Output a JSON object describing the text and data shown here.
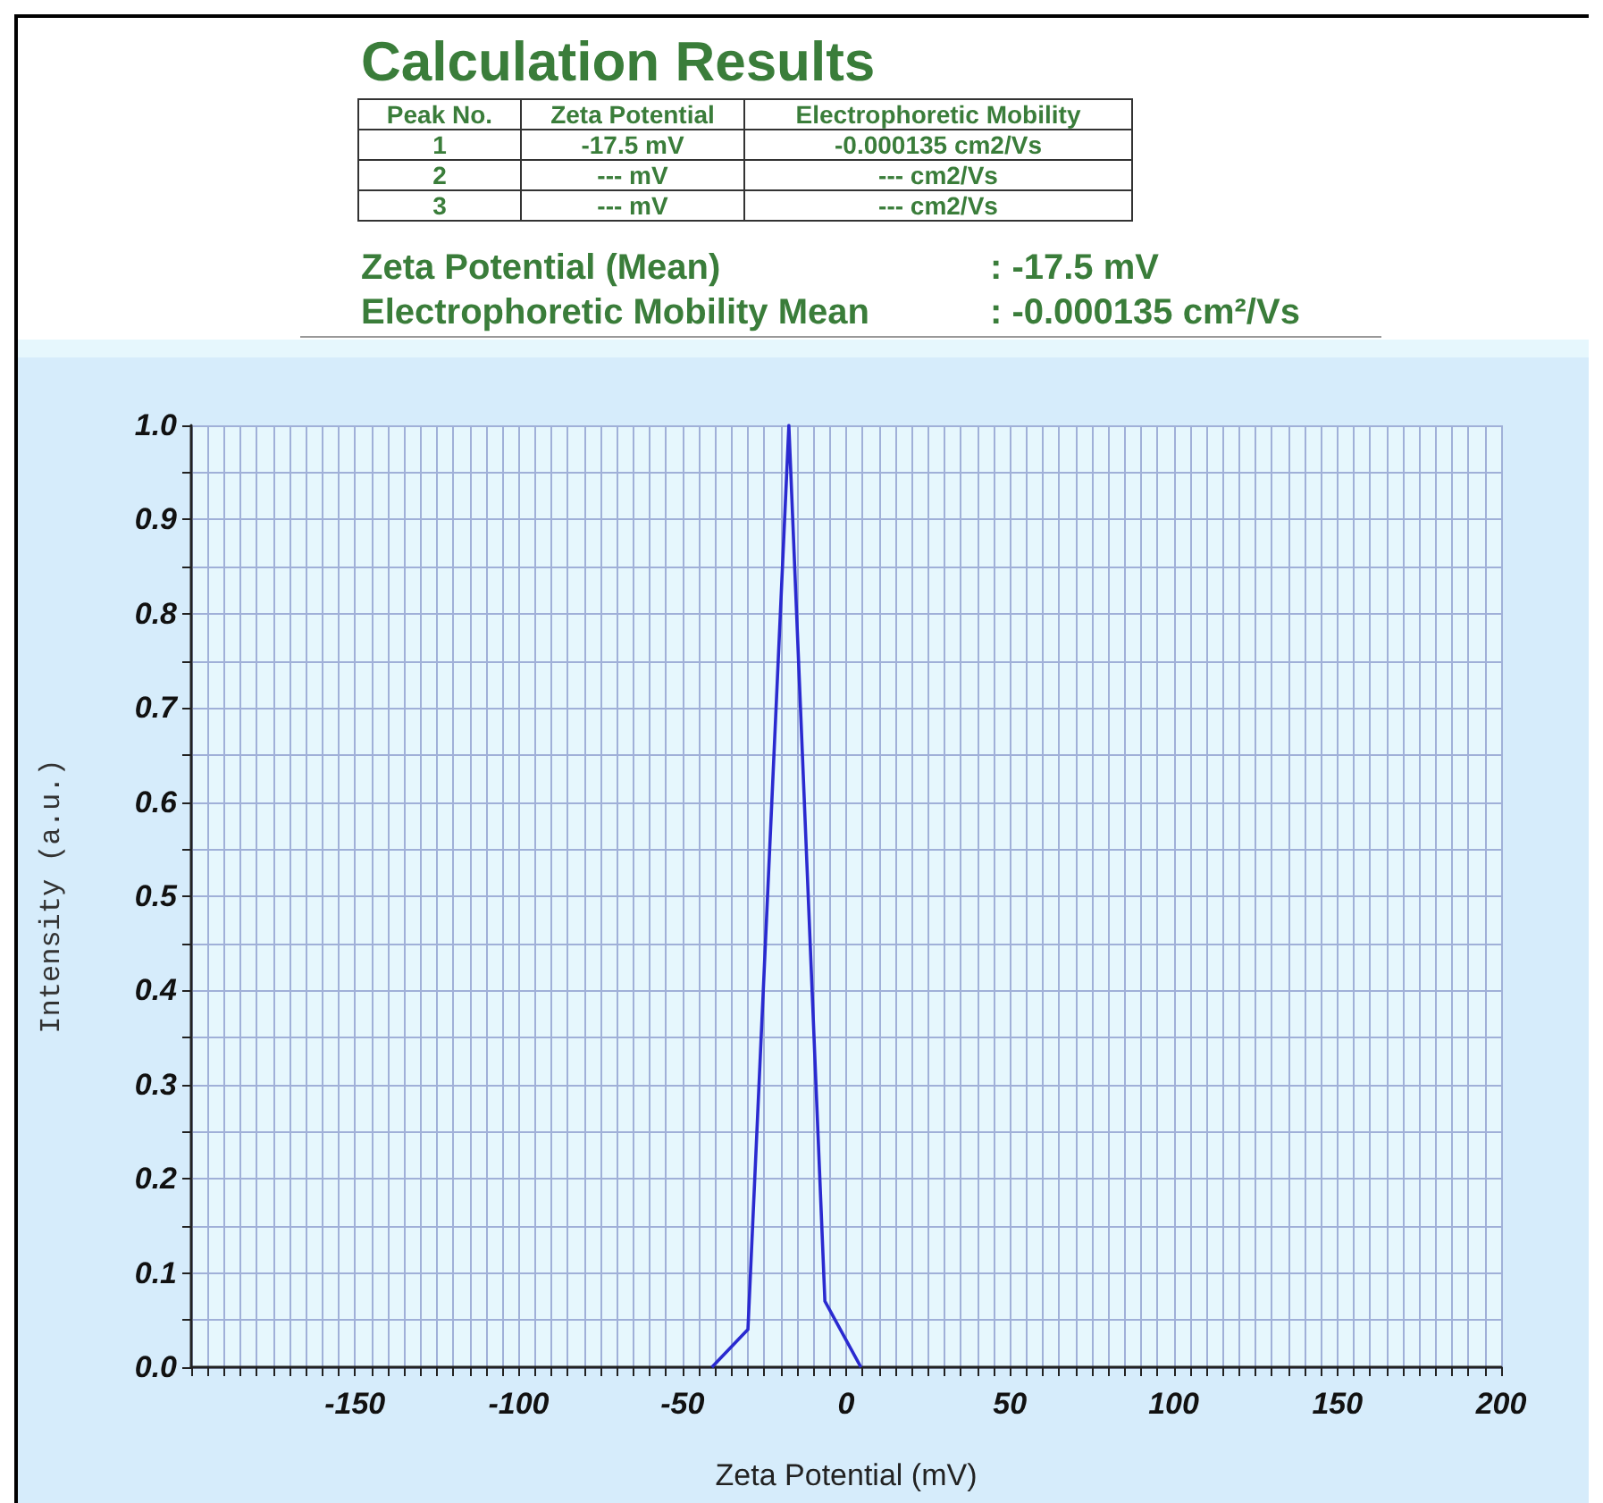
{
  "chart_data": {
    "type": "line",
    "title": "Calculation Results",
    "annotations": [
      "Peak No.",
      "Zeta Potential",
      "Electrophoretic Mobility",
      "1",
      "-17.5 mV",
      "-0.000135 cm2/Vs",
      "2",
      "--- mV",
      "--- cm2/Vs",
      "3",
      "--- mV",
      "--- cm2/Vs",
      "Zeta Potential (Mean)",
      ": -17.5 mV",
      "Electrophoretic Mobility Mean",
      ": -0.000135 cm²/Vs"
    ],
    "xlabel": "Zeta Potential (mV)",
    "ylabel": "Intensity (a.u.)",
    "x": [
      -41,
      -30,
      -17.5,
      -6.5,
      4.5
    ],
    "series": [
      {
        "color": "#2a2ad0",
        "values": [
          0,
          0.04,
          1,
          0.07,
          0
        ]
      }
    ],
    "xlim": [
      -200,
      200
    ],
    "xticks": [
      {
        "value": -200,
        "label": null
      },
      {
        "value": -195,
        "label": null
      },
      {
        "value": -190,
        "label": null
      },
      {
        "value": -185,
        "label": null
      },
      {
        "value": -180,
        "label": null
      },
      {
        "value": -175,
        "label": null
      },
      {
        "value": -170,
        "label": null
      },
      {
        "value": -165,
        "label": null
      },
      {
        "value": -160,
        "label": null
      },
      {
        "value": -155,
        "label": null
      },
      -150,
      {
        "value": -145,
        "label": null
      },
      {
        "value": -140,
        "label": null
      },
      {
        "value": -135,
        "label": null
      },
      {
        "value": -130,
        "label": null
      },
      {
        "value": -125,
        "label": null
      },
      {
        "value": -120,
        "label": null
      },
      {
        "value": -115,
        "label": null
      },
      {
        "value": -110,
        "label": null
      },
      {
        "value": -105,
        "label": null
      },
      -100,
      {
        "value": -95,
        "label": null
      },
      {
        "value": -90,
        "label": null
      },
      {
        "value": -85,
        "label": null
      },
      {
        "value": -80,
        "label": null
      },
      {
        "value": -75,
        "label": null
      },
      {
        "value": -70,
        "label": null
      },
      {
        "value": -65,
        "label": null
      },
      {
        "value": -60,
        "label": null
      },
      {
        "value": -55,
        "label": null
      },
      -50,
      {
        "value": -45,
        "label": null
      },
      {
        "value": -40,
        "label": null
      },
      {
        "value": -35,
        "label": null
      },
      {
        "value": -30,
        "label": null
      },
      {
        "value": -25,
        "label": null
      },
      {
        "value": -20,
        "label": null
      },
      {
        "value": -15,
        "label": null
      },
      {
        "value": -10,
        "label": null
      },
      {
        "value": -5,
        "label": null
      },
      0,
      {
        "value": 5,
        "label": null
      },
      {
        "value": 10,
        "label": null
      },
      {
        "value": 15,
        "label": null
      },
      {
        "value": 20,
        "label": null
      },
      {
        "value": 25,
        "label": null
      },
      {
        "value": 30,
        "label": null
      },
      {
        "value": 35,
        "label": null
      },
      {
        "value": 40,
        "label": null
      },
      {
        "value": 45,
        "label": null
      },
      50,
      {
        "value": 55,
        "label": null
      },
      {
        "value": 60,
        "label": null
      },
      {
        "value": 65,
        "label": null
      },
      {
        "value": 70,
        "label": null
      },
      {
        "value": 75,
        "label": null
      },
      {
        "value": 80,
        "label": null
      },
      {
        "value": 85,
        "label": null
      },
      {
        "value": 90,
        "label": null
      },
      {
        "value": 95,
        "label": null
      },
      100,
      {
        "value": 105,
        "label": null
      },
      {
        "value": 110,
        "label": null
      },
      {
        "value": 115,
        "label": null
      },
      {
        "value": 120,
        "label": null
      },
      {
        "value": 125,
        "label": null
      },
      {
        "value": 130,
        "label": null
      },
      {
        "value": 135,
        "label": null
      },
      {
        "value": 140,
        "label": null
      },
      {
        "value": 145,
        "label": null
      },
      150,
      {
        "value": 155,
        "label": null
      },
      {
        "value": 160,
        "label": null
      },
      {
        "value": 165,
        "label": null
      },
      {
        "value": 170,
        "label": null
      },
      {
        "value": 175,
        "label": null
      },
      {
        "value": 180,
        "label": null
      },
      {
        "value": 185,
        "label": null
      },
      {
        "value": 190,
        "label": null
      },
      {
        "value": 195,
        "label": null
      },
      200
    ],
    "ylim": [
      0,
      1
    ],
    "yticks": [
      {
        "value": 0,
        "label": "0.0"
      },
      {
        "value": 0.05,
        "label": null
      },
      {
        "value": 0.1,
        "label": "0.1"
      },
      {
        "value": 0.15,
        "label": null
      },
      {
        "value": 0.2,
        "label": "0.2"
      },
      {
        "value": 0.25,
        "label": null
      },
      {
        "value": 0.3,
        "label": "0.3"
      },
      {
        "value": 0.35,
        "label": null
      },
      {
        "value": 0.4,
        "label": "0.4"
      },
      {
        "value": 0.45,
        "label": null
      },
      {
        "value": 0.5,
        "label": "0.5"
      },
      {
        "value": 0.55,
        "label": null
      },
      {
        "value": 0.6,
        "label": "0.6"
      },
      {
        "value": 0.65,
        "label": null
      },
      {
        "value": 0.7,
        "label": "0.7"
      },
      {
        "value": 0.75,
        "label": null
      },
      {
        "value": 0.8,
        "label": "0.8"
      },
      {
        "value": 0.85,
        "label": null
      },
      {
        "value": 0.9,
        "label": "0.9"
      },
      {
        "value": 0.95,
        "label": null
      },
      {
        "value": 1,
        "label": "1.0"
      }
    ],
    "grid": true,
    "marker": "none",
    "line_style": "solid"
  }
}
